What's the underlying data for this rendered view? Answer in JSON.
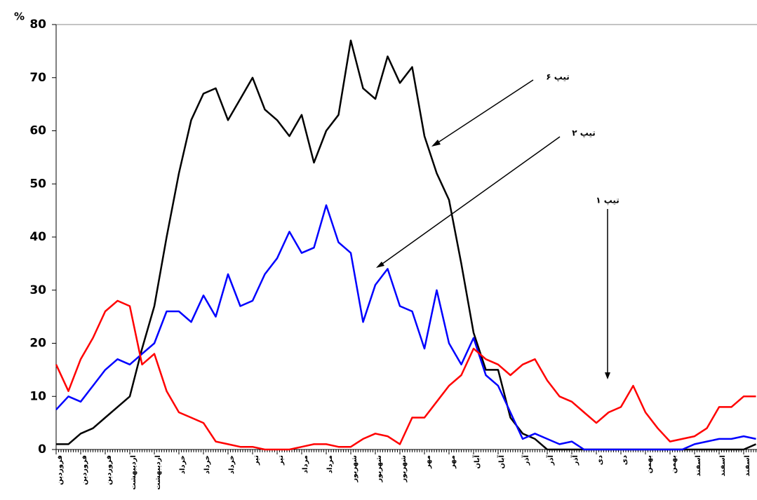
{
  "chart_data": {
    "type": "line",
    "y_unit": "%",
    "categories": [
      "فروردین",
      null,
      "فروردین",
      null,
      "فروردین",
      null,
      "اردیبهشت",
      null,
      "اردیبهشت",
      null,
      "خرداد",
      null,
      "خرداد",
      null,
      "خرداد",
      null,
      "تیر",
      null,
      "تیر",
      null,
      "مرداد",
      null,
      "مرداد",
      null,
      "شهریور",
      null,
      "شهریور",
      null,
      "شهریور",
      null,
      "مهر",
      null,
      "مهر",
      null,
      "آبان",
      null,
      "آبان",
      null,
      "آذر",
      null,
      "آذر",
      null,
      "آذر",
      null,
      "دی",
      null,
      "دی",
      null,
      "بهمن",
      null,
      "بهمن",
      null,
      "اسفند",
      null,
      "اسفند",
      null,
      "اسفند",
      null
    ],
    "series": [
      {
        "name": "تیپ ۶",
        "color": "#000000",
        "values": [
          1,
          1,
          3,
          4,
          6,
          8,
          10,
          19,
          27,
          40,
          52,
          62,
          67,
          68,
          62,
          66,
          70,
          64,
          62,
          59,
          63,
          54,
          60,
          63,
          77,
          68,
          66,
          74,
          69,
          72,
          59,
          52,
          47,
          35,
          22,
          15,
          15,
          6,
          3,
          2,
          0,
          0,
          0,
          0,
          0,
          0,
          0,
          0,
          0,
          0,
          0,
          0,
          0,
          0,
          0,
          0,
          0,
          1
        ]
      },
      {
        "name": "تیپ ۲",
        "color": "#0000ff",
        "values": [
          7.5,
          10,
          9,
          12,
          15,
          17,
          16,
          18,
          20,
          26,
          26,
          24,
          29,
          25,
          33,
          27,
          28,
          33,
          36,
          41,
          37,
          38,
          46,
          39,
          37,
          24,
          31,
          34,
          27,
          26,
          19,
          30,
          20,
          16,
          21,
          14,
          12,
          7,
          2,
          3,
          2,
          1,
          1.5,
          0,
          0,
          0,
          0,
          0,
          0,
          0,
          0,
          0,
          1,
          1.5,
          2,
          2,
          2.5,
          2
        ]
      },
      {
        "name": "تیپ ۱",
        "color": "#ff0000",
        "values": [
          16,
          11,
          17,
          21,
          26,
          28,
          27,
          16,
          18,
          11,
          7,
          6,
          5,
          1.5,
          1,
          0.5,
          0.5,
          0,
          0,
          0,
          0.5,
          1,
          1,
          0.5,
          0.5,
          2,
          3,
          2.5,
          1,
          6,
          6,
          9,
          12,
          14,
          19,
          17,
          16,
          14,
          16,
          17,
          13,
          10,
          9,
          7,
          5,
          7,
          8,
          12,
          7,
          4,
          1.5,
          2,
          2.5,
          4,
          8,
          8,
          10,
          10
        ]
      }
    ],
    "ylim": [
      0,
      80
    ],
    "yticks": [
      0,
      10,
      20,
      30,
      40,
      50,
      60,
      70,
      80
    ],
    "grid": false
  }
}
